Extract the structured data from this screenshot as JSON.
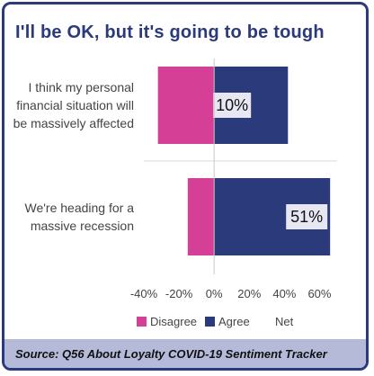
{
  "title": "I'll be OK, but it's going to be tough",
  "source": "Source: Q56 About Loyalty COVID-19 Sentiment Tracker",
  "colors": {
    "disagree": "#d63f96",
    "agree": "#2b3a7a",
    "net_box": "#e6e7f3",
    "frame": "#2b3a7a",
    "footer": "#b5bad9"
  },
  "chart_data": {
    "type": "bar",
    "orientation": "horizontal-diverging",
    "categories": [
      [
        "I think my personal",
        "financial situation will",
        "be massively affected"
      ],
      [
        "We're heading for a",
        "massive recession"
      ]
    ],
    "series": [
      {
        "name": "Disagree",
        "values": [
          -32,
          -15
        ]
      },
      {
        "name": "Agree",
        "values": [
          42,
          66
        ]
      }
    ],
    "net": {
      "name": "Net",
      "labels": [
        "10%",
        "51%"
      ]
    },
    "xlim": [
      -40,
      70
    ],
    "xticks": [
      -40,
      -20,
      0,
      20,
      40,
      60
    ],
    "xtick_labels": [
      "-40%",
      "-20%",
      "0%",
      "20%",
      "40%",
      "60%"
    ],
    "legend": {
      "position": "bottom",
      "entries": [
        "Disagree",
        "Agree",
        "Net"
      ]
    },
    "grid": false
  }
}
